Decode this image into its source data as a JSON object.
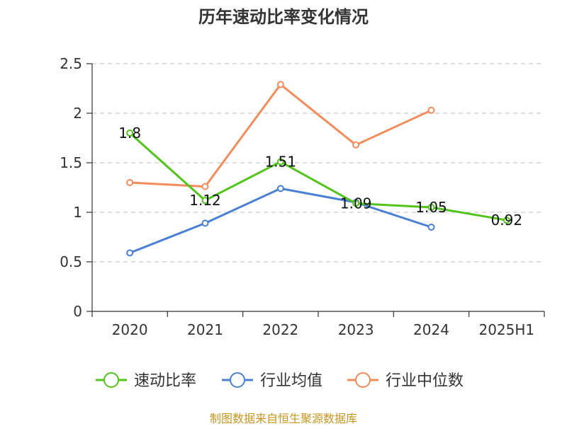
{
  "chart_data": {
    "type": "line",
    "title": "历年速动比率变化情况",
    "categories": [
      "2020",
      "2021",
      "2022",
      "2023",
      "2024",
      "2025H1"
    ],
    "ylim": [
      0,
      2.5
    ],
    "y_ticks": [
      "0",
      "0.5",
      "1",
      "1.5",
      "2",
      "2.5"
    ],
    "grid": true,
    "legend_position": "bottom",
    "series": [
      {
        "name": "速动比率",
        "color": "#52c41a",
        "values": [
          1.8,
          1.12,
          1.51,
          1.09,
          1.05,
          0.92
        ],
        "labels": [
          "1.8",
          "1.12",
          "1.51",
          "1.09",
          "1.05",
          "0.92"
        ]
      },
      {
        "name": "行业均值",
        "color": "#4a7fd6",
        "values": [
          0.59,
          0.89,
          1.24,
          1.1,
          0.85,
          null
        ]
      },
      {
        "name": "行业中位数",
        "color": "#f28c5a",
        "values": [
          1.3,
          1.26,
          2.29,
          1.68,
          2.03,
          null
        ]
      }
    ]
  },
  "source": "制图数据来自恒生聚源数据库"
}
